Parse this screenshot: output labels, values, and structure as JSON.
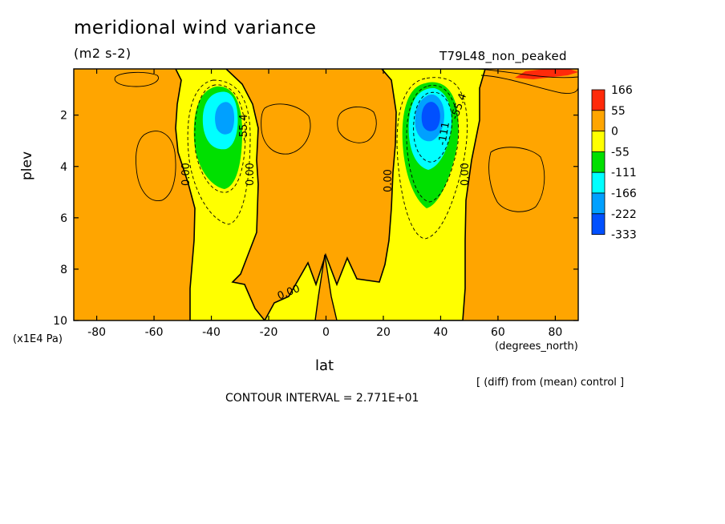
{
  "chart_data": {
    "type": "heatmap",
    "title": "meridional wind variance",
    "units": "(m2 s-2)",
    "experiment": "T79L48_non_peaked",
    "xlabel": "lat",
    "ylabel": "plev",
    "x_unit": "(degrees_north)",
    "y_unit": "(x1E4 Pa)",
    "xlim": [
      -88,
      88
    ],
    "ylim": [
      10,
      0.2
    ],
    "x_ticks": [
      "-80",
      "-60",
      "-40",
      "-20",
      "0",
      "20",
      "40",
      "60",
      "80"
    ],
    "x_tick_values": [
      -80,
      -60,
      -40,
      -20,
      0,
      20,
      40,
      60,
      80
    ],
    "y_ticks": [
      "2",
      "4",
      "6",
      "8",
      "10"
    ],
    "y_tick_values": [
      2,
      4,
      6,
      8,
      10
    ],
    "contour_interval_text": "CONTOUR INTERVAL = 2.771E+01",
    "comparison_note": "[ (diff) from (mean) control ]",
    "colorbar": {
      "labels": [
        "166",
        "55",
        "0",
        "-55",
        "-111",
        "-166",
        "-222",
        "-333"
      ],
      "colors": [
        "#ff2a0a",
        "#ffa500",
        "#ffff00",
        "#00e000",
        "#00ffff",
        "#00a0ff",
        "#0050ff"
      ]
    },
    "contour_labels": [
      "0.00",
      "0.00",
      "0.00",
      "0.00",
      "0.00",
      "-55.4",
      "-55.4",
      "-111"
    ],
    "regions": [
      {
        "name": "sh-polar-positive",
        "lat_range": [
          -88,
          -45
        ],
        "sign": "positive",
        "level": "0 to 55"
      },
      {
        "name": "sh-jet-negative",
        "lat_center": -37,
        "plev_center": 2.0,
        "min_level": "-222"
      },
      {
        "name": "tropics-positive",
        "lat_range": [
          -26,
          21
        ],
        "sign": "positive",
        "level": "0 to 55"
      },
      {
        "name": "nh-jet-negative",
        "lat_center": 36,
        "plev_center": 2.0,
        "min_level": "-333"
      },
      {
        "name": "nh-polar-positive",
        "lat_range": [
          52,
          88
        ],
        "sign": "positive",
        "level": "0 to 55"
      },
      {
        "name": "nh-polar-max",
        "lat_center": 78,
        "plev_center": 0.4,
        "max_level": "166"
      }
    ]
  }
}
